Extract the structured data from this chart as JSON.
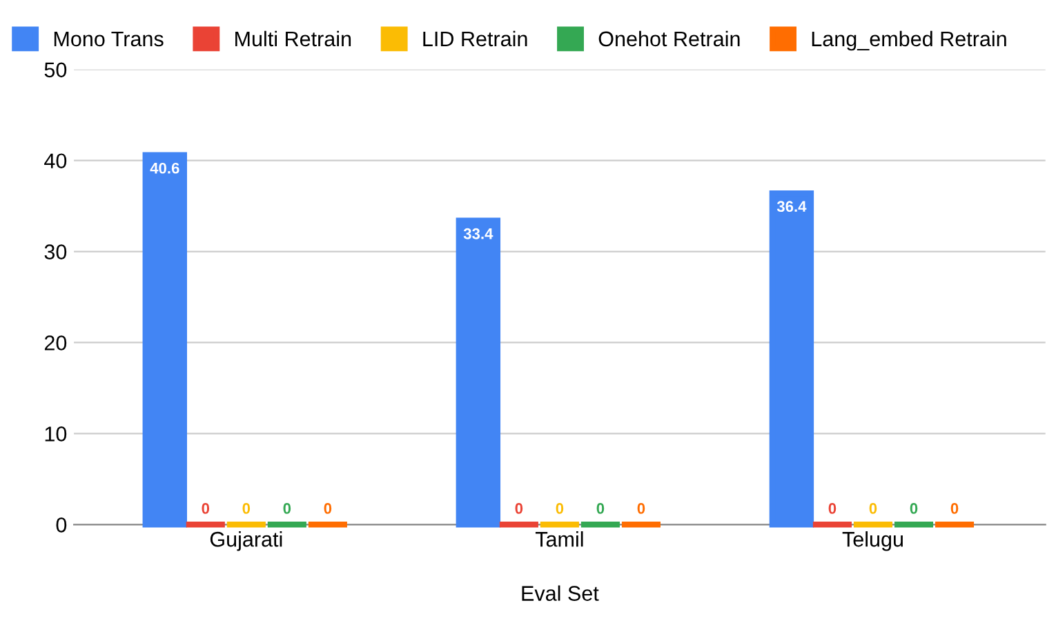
{
  "chart_data": {
    "type": "bar",
    "xlabel": "Eval Set",
    "categories": [
      "Gujarati",
      "Tamil",
      "Telugu"
    ],
    "series": [
      {
        "name": "Mono Trans",
        "color": "#4285f4",
        "values": [
          40.6,
          33.4,
          36.4
        ]
      },
      {
        "name": "Multi Retrain",
        "color": "#ea4335",
        "values": [
          0,
          0,
          0
        ]
      },
      {
        "name": "LID Retrain",
        "color": "#fbbc04",
        "values": [
          0,
          0,
          0
        ]
      },
      {
        "name": "Onehot Retrain",
        "color": "#34a853",
        "values": [
          0,
          0,
          0
        ]
      },
      {
        "name": "Lang_embed Retrain",
        "color": "#ff6d01",
        "values": [
          0,
          0,
          0
        ]
      }
    ],
    "ylim": [
      0,
      50
    ],
    "yticks": [
      0,
      10,
      20,
      30,
      40,
      50
    ],
    "grid": "y",
    "legend": "top",
    "data_labels": true
  }
}
